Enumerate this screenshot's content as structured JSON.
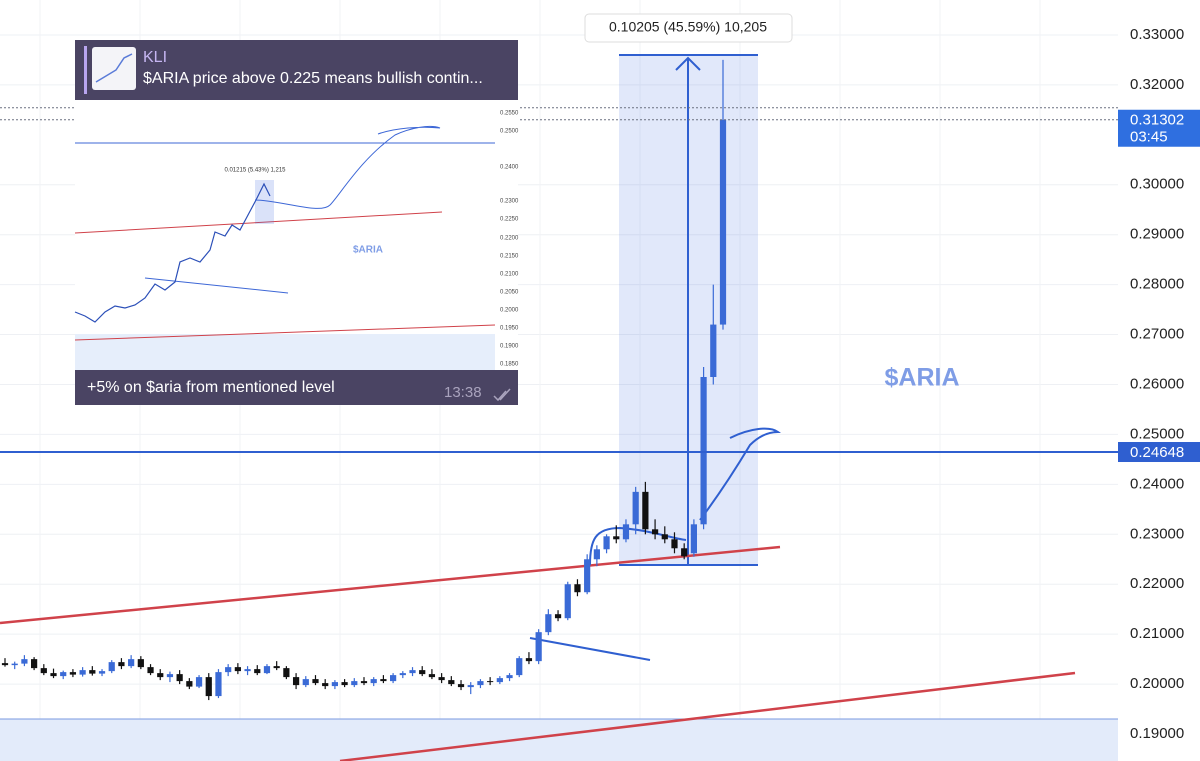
{
  "chart_data": {
    "type": "candlestick",
    "annotation": "$ARIA",
    "measure_label": "0.10205 (45.59%) 10,205",
    "last_price": {
      "value": 0.31302,
      "label": "0.31302"
    },
    "countdown": "03:45",
    "level": {
      "value": 0.24648,
      "label": "0.24648"
    },
    "up_color": "#3a6ad6",
    "down_color": "#111111",
    "grid": true,
    "ylim": [
      0.1846,
      0.337
    ],
    "yticks": [
      {
        "value": 0.33,
        "label": "0.33000"
      },
      {
        "value": 0.32,
        "label": "0.32000"
      },
      {
        "value": 0.3,
        "label": "0.30000"
      },
      {
        "value": 0.29,
        "label": "0.29000"
      },
      {
        "value": 0.28,
        "label": "0.28000"
      },
      {
        "value": 0.27,
        "label": "0.27000"
      },
      {
        "value": 0.26,
        "label": "0.26000"
      },
      {
        "value": 0.25,
        "label": "0.25000"
      },
      {
        "value": 0.24,
        "label": "0.24000"
      },
      {
        "value": 0.23,
        "label": "0.23000"
      },
      {
        "value": 0.22,
        "label": "0.22000"
      },
      {
        "value": 0.21,
        "label": "0.21000"
      },
      {
        "value": 0.2,
        "label": "0.20000"
      },
      {
        "value": 0.19,
        "label": "0.19000"
      }
    ],
    "candles": [
      [
        0.2042,
        0.2052,
        0.2035,
        0.2038
      ],
      [
        0.2038,
        0.2045,
        0.203,
        0.2041
      ],
      [
        0.2041,
        0.2058,
        0.2036,
        0.205
      ],
      [
        0.205,
        0.2054,
        0.2028,
        0.2032
      ],
      [
        0.2032,
        0.204,
        0.2018,
        0.2022
      ],
      [
        0.2022,
        0.2031,
        0.2012,
        0.2016
      ],
      [
        0.2016,
        0.2027,
        0.201,
        0.2024
      ],
      [
        0.2024,
        0.203,
        0.2014,
        0.2019
      ],
      [
        0.2019,
        0.2034,
        0.2015,
        0.2028
      ],
      [
        0.2028,
        0.2036,
        0.2017,
        0.2021
      ],
      [
        0.2021,
        0.203,
        0.2016,
        0.2026
      ],
      [
        0.2026,
        0.2048,
        0.2022,
        0.2044
      ],
      [
        0.2044,
        0.2052,
        0.203,
        0.2036
      ],
      [
        0.2036,
        0.2058,
        0.2032,
        0.205
      ],
      [
        0.205,
        0.2056,
        0.203,
        0.2034
      ],
      [
        0.2034,
        0.204,
        0.2018,
        0.2022
      ],
      [
        0.2022,
        0.203,
        0.2008,
        0.2014
      ],
      [
        0.2014,
        0.2025,
        0.2004,
        0.202
      ],
      [
        0.202,
        0.2028,
        0.2,
        0.2006
      ],
      [
        0.2006,
        0.2012,
        0.199,
        0.1995
      ],
      [
        0.1995,
        0.2018,
        0.1992,
        0.2014
      ],
      [
        0.2014,
        0.2022,
        0.1968,
        0.1976
      ],
      [
        0.1976,
        0.203,
        0.1972,
        0.2024
      ],
      [
        0.2024,
        0.204,
        0.2016,
        0.2034
      ],
      [
        0.2034,
        0.2042,
        0.202,
        0.2026
      ],
      [
        0.2026,
        0.2036,
        0.2018,
        0.203
      ],
      [
        0.203,
        0.2038,
        0.2018,
        0.2022
      ],
      [
        0.2022,
        0.204,
        0.202,
        0.2036
      ],
      [
        0.2036,
        0.2046,
        0.2028,
        0.2032
      ],
      [
        0.2032,
        0.2036,
        0.201,
        0.2014
      ],
      [
        0.2014,
        0.2022,
        0.199,
        0.1998
      ],
      [
        0.1998,
        0.2016,
        0.1994,
        0.201
      ],
      [
        0.201,
        0.2018,
        0.1998,
        0.2002
      ],
      [
        0.2002,
        0.201,
        0.199,
        0.1996
      ],
      [
        0.1996,
        0.2008,
        0.199,
        0.2004
      ],
      [
        0.2004,
        0.201,
        0.1994,
        0.1998
      ],
      [
        0.1998,
        0.2012,
        0.1994,
        0.2006
      ],
      [
        0.2006,
        0.2014,
        0.1998,
        0.2002
      ],
      [
        0.2002,
        0.2014,
        0.1996,
        0.201
      ],
      [
        0.201,
        0.2018,
        0.2002,
        0.2006
      ],
      [
        0.2006,
        0.2022,
        0.2002,
        0.2018
      ],
      [
        0.2018,
        0.2026,
        0.2012,
        0.2022
      ],
      [
        0.2022,
        0.2034,
        0.2016,
        0.2028
      ],
      [
        0.2028,
        0.2036,
        0.2016,
        0.202
      ],
      [
        0.202,
        0.203,
        0.201,
        0.2014
      ],
      [
        0.2014,
        0.2022,
        0.2002,
        0.2008
      ],
      [
        0.2008,
        0.2016,
        0.1996,
        0.2
      ],
      [
        0.2,
        0.2008,
        0.1988,
        0.1994
      ],
      [
        0.1994,
        0.2004,
        0.198,
        0.1998
      ],
      [
        0.1998,
        0.201,
        0.1992,
        0.2006
      ],
      [
        0.2006,
        0.2014,
        0.1998,
        0.2004
      ],
      [
        0.2004,
        0.2016,
        0.2,
        0.2012
      ],
      [
        0.2012,
        0.2022,
        0.2006,
        0.2018
      ],
      [
        0.2018,
        0.2056,
        0.2014,
        0.2052
      ],
      [
        0.2052,
        0.2064,
        0.204,
        0.2046
      ],
      [
        0.2046,
        0.211,
        0.204,
        0.2104
      ],
      [
        0.2104,
        0.215,
        0.2098,
        0.214
      ],
      [
        0.214,
        0.2148,
        0.2126,
        0.2132
      ],
      [
        0.2132,
        0.2205,
        0.2128,
        0.22
      ],
      [
        0.22,
        0.221,
        0.2176,
        0.2184
      ],
      [
        0.2184,
        0.226,
        0.218,
        0.225
      ],
      [
        0.225,
        0.2278,
        0.2236,
        0.227
      ],
      [
        0.227,
        0.23,
        0.2262,
        0.2296
      ],
      [
        0.2296,
        0.2318,
        0.2282,
        0.229
      ],
      [
        0.229,
        0.233,
        0.2284,
        0.232
      ],
      [
        0.232,
        0.2395,
        0.23,
        0.2385
      ],
      [
        0.2385,
        0.2405,
        0.23,
        0.231
      ],
      [
        0.231,
        0.233,
        0.229,
        0.23
      ],
      [
        0.23,
        0.2316,
        0.2282,
        0.229
      ],
      [
        0.229,
        0.2304,
        0.2262,
        0.2272
      ],
      [
        0.2272,
        0.2282,
        0.225,
        0.2256
      ],
      [
        0.2262,
        0.233,
        0.2255,
        0.232
      ],
      [
        0.232,
        0.2635,
        0.231,
        0.2615
      ],
      [
        0.2615,
        0.28,
        0.26,
        0.272
      ],
      [
        0.272,
        0.325,
        0.271,
        0.313
      ]
    ]
  },
  "message": {
    "sender": "KLI",
    "quote": "$ARIA price above 0.225 means bullish contin...",
    "text": "+5% on $aria from mentioned level",
    "time": "13:38",
    "thumbnail": {
      "annotation": "$ARIA",
      "measure_label": "0.01215 (5.43%) 1,215",
      "axis_labels": [
        "0.2550",
        "0.2500",
        "0.2400",
        "0.2300",
        "0.2250",
        "0.2200",
        "0.2150",
        "0.2100",
        "0.2050",
        "0.2000",
        "0.1950",
        "0.1900",
        "0.1850"
      ]
    }
  }
}
